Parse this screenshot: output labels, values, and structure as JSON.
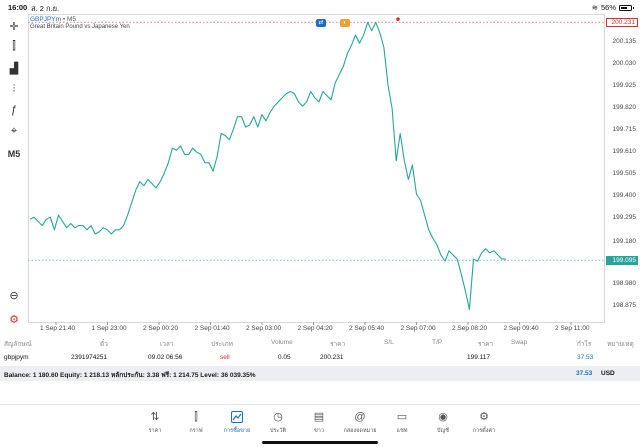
{
  "status_bar": {
    "time": "16:00",
    "date": "ส. 2 ก.ย.",
    "battery": "56%",
    "battery_level": 0.56
  },
  "left_toolbar": {
    "items": [
      {
        "name": "crosshair-icon",
        "glyph": "✛"
      },
      {
        "name": "candlestick-icon",
        "glyph": "⫿"
      },
      {
        "name": "chart-type-icon",
        "glyph": "▟"
      },
      {
        "name": "indicators-icon",
        "glyph": "⫶"
      },
      {
        "name": "function-icon",
        "glyph": "ƒ"
      },
      {
        "name": "objects-icon",
        "glyph": "⌖"
      }
    ],
    "timeframe": "M5",
    "zoom_icon": "⊖",
    "settings_icon": "⚙"
  },
  "chart": {
    "symbol": "GBPJPYm",
    "separator": "•",
    "timeframe": "M5",
    "description": "Great Britain Pound vs Japanese Yen",
    "badges": [
      "⇄",
      "◐"
    ]
  },
  "chart_data": {
    "type": "line",
    "title": "",
    "xlabel": "",
    "ylabel": "",
    "ylim": [
      198.8,
      200.27
    ],
    "y_ticks": [
      "200.231",
      "200.135",
      "200.030",
      "199.925",
      "199.820",
      "199.715",
      "199.610",
      "199.505",
      "199.400",
      "199.295",
      "199.180",
      "199.095",
      "198.980",
      "198.875"
    ],
    "y_tick_values": [
      200.231,
      200.135,
      200.03,
      199.925,
      199.82,
      199.715,
      199.61,
      199.505,
      199.4,
      199.295,
      199.18,
      199.095,
      198.98,
      198.875
    ],
    "x_ticks": [
      "1 Sep 21:40",
      "1 Sep 23:00",
      "2 Sep 00:20",
      "2 Sep 01:40",
      "2 Sep 03:00",
      "2 Sep 04:20",
      "2 Sep 05:40",
      "2 Sep 07:00",
      "2 Sep 08:20",
      "2 Sep 09:40",
      "2 Sep 11:00"
    ],
    "series": [
      {
        "values": [
          199.29,
          199.3,
          199.28,
          199.26,
          199.29,
          199.3,
          199.24,
          199.31,
          199.28,
          199.25,
          199.27,
          199.25,
          199.26,
          199.26,
          199.24,
          199.26,
          199.22,
          199.23,
          199.25,
          199.24,
          199.22,
          199.24,
          199.24,
          199.26,
          199.31,
          199.37,
          199.43,
          199.47,
          199.45,
          199.48,
          199.46,
          199.44,
          199.47,
          199.51,
          199.56,
          199.63,
          199.62,
          199.64,
          199.6,
          199.6,
          199.63,
          199.61,
          199.6,
          199.56,
          199.56,
          199.52,
          199.59,
          199.7,
          199.69,
          199.67,
          199.72,
          199.78,
          199.78,
          199.73,
          199.74,
          199.78,
          199.73,
          199.79,
          199.76,
          199.8,
          199.83,
          199.85,
          199.87,
          199.89,
          199.9,
          199.89,
          199.85,
          199.83,
          199.85,
          199.9,
          199.87,
          199.85,
          199.9,
          199.88,
          199.86,
          199.94,
          199.98,
          200.02,
          200.08,
          200.12,
          200.17,
          200.13,
          200.17,
          200.23,
          200.19,
          200.23,
          200.18,
          200.11,
          199.93,
          199.82,
          199.57,
          199.7,
          199.57,
          199.48,
          199.55,
          199.41,
          199.38,
          199.31,
          199.24,
          199.2,
          199.17,
          199.12,
          199.09,
          199.14,
          199.12,
          199.1,
          199.03,
          198.95,
          198.86,
          199.1,
          199.09,
          199.13,
          199.15,
          199.13,
          199.14,
          199.12,
          199.1,
          199.1
        ]
      }
    ],
    "current_bid": "199.095",
    "current_bid_value": 199.095,
    "line_color": "#26a69a",
    "bid_line_color": "#26a69a",
    "open_line_color": "#d32f2f",
    "grid": true
  },
  "trade": {
    "headers": [
      "สัญลักษณ์",
      "ตั๋ว",
      "เวลา",
      "ประเภท",
      "Volume",
      "ราคา",
      "S/L",
      "T/P",
      "ราคา",
      "Swap",
      "กำไร",
      "หมายเหตุ"
    ],
    "row": {
      "symbol": "gbpjpym",
      "ticket": "2391974251",
      "time": "09.02 06:56",
      "type": "sell",
      "volume": "0.05",
      "price": "200.231",
      "current_price": "199.117",
      "profit": "37.53"
    },
    "balance": {
      "text": "Balance: 1 180.60 Equity: 1 218.13 หลักประกัน: 3.38 ฟรี: 1 214.75 Level: 36 039.35%",
      "total": "37.53",
      "currency": "USD"
    }
  },
  "tabbar": {
    "tabs": [
      {
        "label": "ราคา",
        "icon": "⇅",
        "name": "quotes"
      },
      {
        "label": "กราฟ",
        "icon": "⫿",
        "name": "charts"
      },
      {
        "label": "การซื้อขาย",
        "icon": "⌇",
        "name": "trade"
      },
      {
        "label": "ประวัติ",
        "icon": "◷",
        "name": "history"
      },
      {
        "label": "ข่าว",
        "icon": "▤",
        "name": "news"
      },
      {
        "label": "กล่องจดหมาย",
        "icon": "@",
        "name": "mailbox"
      },
      {
        "label": "แชท",
        "icon": "▭",
        "name": "chat"
      },
      {
        "label": "บัญชี",
        "icon": "◉",
        "name": "accounts"
      },
      {
        "label": "การตั้งค่า",
        "icon": "⚙",
        "name": "settings"
      }
    ],
    "active": "trade"
  }
}
